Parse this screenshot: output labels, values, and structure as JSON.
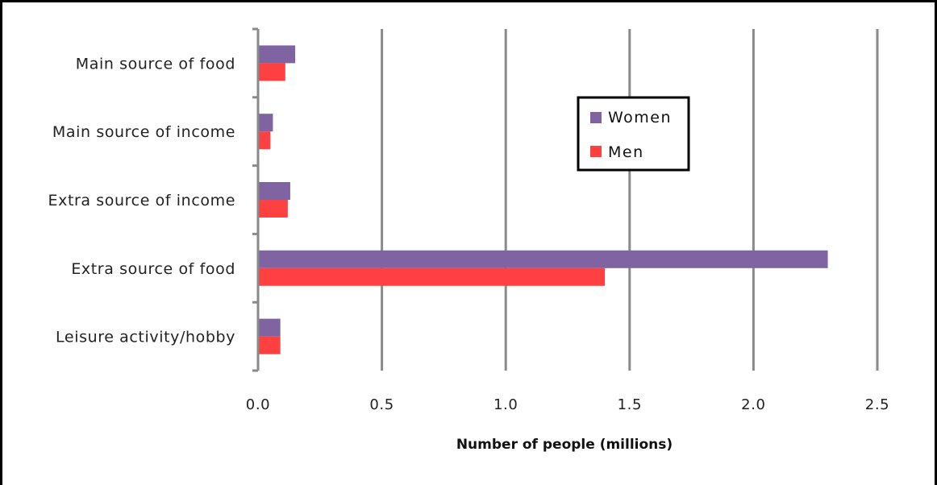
{
  "chart_data": {
    "type": "bar",
    "orientation": "horizontal",
    "title": "",
    "xlabel": "Number of people (millions)",
    "ylabel": "",
    "categories": [
      "Main source of food",
      "Main source of income",
      "Extra source of income",
      "Extra source of food",
      "Leisure activity/hobby"
    ],
    "series": [
      {
        "name": "Women",
        "color": "#8064A2",
        "values": [
          0.15,
          0.06,
          0.13,
          2.3,
          0.09
        ]
      },
      {
        "name": "Men",
        "color": "#FF4040",
        "values": [
          0.11,
          0.05,
          0.12,
          1.4,
          0.09
        ]
      }
    ],
    "xlim": [
      0,
      2.5
    ],
    "xticks": [
      "0.0",
      "0.5",
      "1.0",
      "1.5",
      "2.0",
      "2.5"
    ],
    "grid": "vertical",
    "legend_position": "right"
  }
}
